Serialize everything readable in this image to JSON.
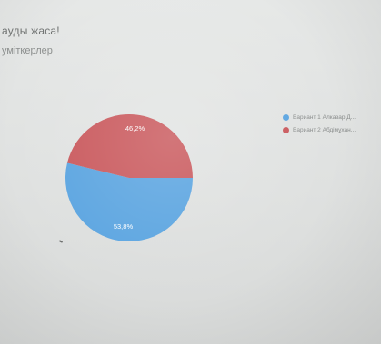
{
  "form": {
    "title": "ауды жаса!",
    "subtitle": "уміткерлер"
  },
  "chart_data": {
    "type": "pie",
    "slices": [
      {
        "label": "Вариант 1 Алказар Д...",
        "value": 53.8,
        "value_label": "53,8%",
        "color": "#5aa4e0"
      },
      {
        "label": "Вариант 2 Абдімұхан...",
        "value": 46.2,
        "value_label": "46,2%",
        "color": "#c9585c"
      }
    ],
    "legend_placement": "right"
  }
}
